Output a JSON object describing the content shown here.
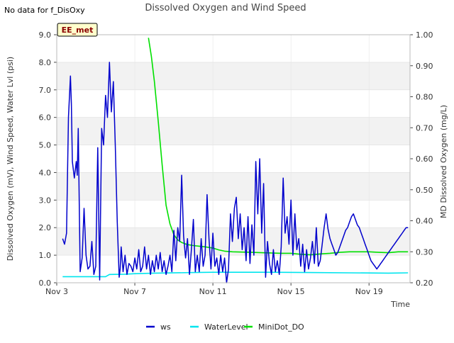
{
  "note": "No data for f_DisOxy",
  "chart_data": {
    "type": "line",
    "title": "Dissolved Oxygen and Wind Speed",
    "badge": "EE_met",
    "xlabel": "Time",
    "ylabel_left": "Dissolved Oxygen (mV), Wind Speed, Water Lvl (psi)",
    "ylabel_right": "MD Dissolved Oxygen (mg/L)",
    "x_ticks": [
      {
        "x": 3,
        "label": "Nov 3"
      },
      {
        "x": 7,
        "label": "Nov 7"
      },
      {
        "x": 11,
        "label": "Nov 11"
      },
      {
        "x": 15,
        "label": "Nov 15"
      },
      {
        "x": 19,
        "label": "Nov 19"
      }
    ],
    "xlim": [
      3,
      21.1
    ],
    "ylim_left": [
      0,
      9
    ],
    "ylim_right": [
      0.2,
      1.0
    ],
    "left_ticks": [
      "0.0",
      "1.0",
      "2.0",
      "3.0",
      "4.0",
      "5.0",
      "6.0",
      "7.0",
      "8.0",
      "9.0"
    ],
    "right_ticks": [
      "0.20",
      "0.30",
      "0.40",
      "0.50",
      "0.60",
      "0.70",
      "0.80",
      "0.90",
      "1.00"
    ],
    "left_tick_values": [
      0,
      1,
      2,
      3,
      4,
      5,
      6,
      7,
      8,
      9
    ],
    "right_tick_values": [
      0.2,
      0.3,
      0.4,
      0.5,
      0.6,
      0.7,
      0.8,
      0.9,
      1.0
    ],
    "grid_bands": true,
    "legend_position": "bottom",
    "series": [
      {
        "name": "ws",
        "color": "#0000cc",
        "axis": "left",
        "x": [
          3.3,
          3.4,
          3.5,
          3.6,
          3.7,
          3.75,
          3.8,
          3.9,
          4.0,
          4.05,
          4.1,
          4.2,
          4.3,
          4.4,
          4.5,
          4.6,
          4.7,
          4.8,
          4.9,
          5.0,
          5.1,
          5.2,
          5.3,
          5.4,
          5.5,
          5.6,
          5.7,
          5.8,
          5.9,
          6.0,
          6.1,
          6.2,
          6.25,
          6.3,
          6.4,
          6.5,
          6.6,
          6.7,
          6.8,
          6.9,
          7.0,
          7.1,
          7.2,
          7.3,
          7.4,
          7.5,
          7.6,
          7.7,
          7.8,
          7.9,
          8.0,
          8.1,
          8.2,
          8.3,
          8.4,
          8.5,
          8.6,
          8.7,
          8.8,
          8.9,
          9.0,
          9.1,
          9.2,
          9.3,
          9.4,
          9.5,
          9.6,
          9.7,
          9.8,
          9.9,
          10.0,
          10.1,
          10.2,
          10.3,
          10.4,
          10.5,
          10.6,
          10.7,
          10.8,
          10.9,
          11.0,
          11.1,
          11.2,
          11.3,
          11.4,
          11.5,
          11.6,
          11.7,
          11.8,
          11.9,
          12.0,
          12.1,
          12.2,
          12.3,
          12.4,
          12.5,
          12.6,
          12.7,
          12.8,
          12.9,
          13.0,
          13.1,
          13.2,
          13.3,
          13.4,
          13.5,
          13.6,
          13.7,
          13.8,
          13.9,
          14.0,
          14.1,
          14.2,
          14.3,
          14.4,
          14.5,
          14.6,
          14.7,
          14.8,
          14.9,
          15.0,
          15.1,
          15.2,
          15.3,
          15.4,
          15.5,
          15.6,
          15.7,
          15.8,
          15.9,
          16.0,
          16.1,
          16.2,
          16.3,
          16.4,
          16.5,
          16.6,
          16.7,
          16.8,
          16.9,
          17.0,
          17.1,
          17.2,
          17.3,
          17.4,
          17.5,
          17.6,
          17.7,
          17.8,
          17.9,
          18.0,
          18.1,
          18.2,
          18.3,
          18.4,
          18.5,
          18.6,
          18.7,
          18.8,
          18.9,
          19.0,
          19.1,
          19.2,
          19.3,
          19.4,
          19.5,
          19.6,
          19.7,
          19.8,
          19.9,
          20.0,
          20.1,
          20.2,
          20.3,
          20.4,
          20.5,
          20.6,
          20.7,
          20.8,
          20.9,
          21.0
        ],
        "values": [
          1.6,
          1.4,
          1.8,
          6.0,
          7.5,
          6.5,
          4.4,
          3.8,
          4.4,
          3.9,
          5.6,
          0.4,
          0.9,
          2.7,
          1.0,
          0.5,
          0.6,
          1.5,
          0.3,
          0.6,
          4.9,
          0.1,
          5.6,
          5.0,
          6.8,
          6.0,
          8.0,
          6.2,
          7.3,
          5.0,
          2.2,
          0.2,
          0.5,
          1.3,
          0.4,
          1.0,
          0.3,
          0.7,
          0.6,
          0.4,
          0.9,
          0.5,
          1.2,
          0.4,
          0.6,
          1.3,
          0.5,
          1.0,
          0.3,
          0.8,
          0.4,
          1.0,
          0.5,
          1.1,
          0.4,
          0.8,
          0.3,
          0.6,
          1.0,
          0.4,
          1.9,
          0.8,
          2.0,
          1.5,
          3.9,
          1.7,
          0.9,
          1.6,
          0.3,
          1.2,
          2.3,
          0.4,
          1.0,
          0.4,
          1.6,
          0.6,
          1.0,
          3.2,
          1.6,
          0.5,
          1.8,
          0.6,
          0.9,
          0.3,
          1.0,
          0.4,
          0.9,
          0.0,
          0.5,
          2.5,
          1.5,
          2.7,
          3.1,
          1.6,
          2.5,
          1.2,
          2.0,
          0.8,
          2.4,
          0.7,
          2.1,
          1.0,
          4.4,
          2.5,
          4.5,
          1.8,
          3.6,
          0.2,
          1.5,
          0.7,
          0.3,
          1.2,
          0.4,
          0.8,
          0.3,
          1.3,
          3.8,
          1.8,
          2.4,
          1.4,
          3.0,
          1.0,
          2.5,
          1.2,
          1.6,
          0.6,
          1.4,
          0.4,
          1.2,
          0.5,
          0.9,
          1.5,
          0.7,
          2.0,
          0.6,
          0.8,
          1.4,
          2.0,
          2.5,
          1.95,
          1.6,
          1.4,
          1.2,
          1.0,
          1.1,
          1.3,
          1.5,
          1.7,
          1.9,
          2.0,
          2.2,
          2.4,
          2.5,
          2.3,
          2.1,
          2.0,
          1.8,
          1.6,
          1.4,
          1.2,
          1.0,
          0.8,
          0.7,
          0.6,
          0.5,
          0.6,
          0.7,
          0.8,
          0.9,
          1.0,
          1.1,
          1.2,
          1.3,
          1.4,
          1.5,
          1.6,
          1.7,
          1.8,
          1.9,
          2.0,
          2.0
        ]
      },
      {
        "name": "WaterLevel",
        "color": "#00e5ee",
        "axis": "left",
        "x": [
          3.3,
          5.5,
          5.7,
          6.5,
          7.0,
          8.0,
          10.0,
          11.0,
          14.0,
          16.0,
          18.0,
          20.0,
          21.0
        ],
        "values": [
          0.22,
          0.22,
          0.3,
          0.31,
          0.33,
          0.35,
          0.37,
          0.38,
          0.38,
          0.37,
          0.36,
          0.35,
          0.36
        ]
      },
      {
        "name": "MiniDot_DO",
        "color": "#00e000",
        "axis": "right",
        "x": [
          7.7,
          7.85,
          8.0,
          8.2,
          8.4,
          8.6,
          8.8,
          9.0,
          9.2,
          9.4,
          9.6,
          9.8,
          10.0,
          10.3,
          10.6,
          11.0,
          11.3,
          11.6,
          12.0,
          12.5,
          13.0,
          13.5,
          14.0,
          14.5,
          15.0,
          15.5,
          16.0,
          16.5,
          17.0,
          17.5,
          18.0,
          18.5,
          19.0,
          19.5,
          20.0,
          20.5,
          21.0
        ],
        "values": [
          0.99,
          0.93,
          0.85,
          0.72,
          0.58,
          0.45,
          0.39,
          0.355,
          0.338,
          0.33,
          0.325,
          0.322,
          0.32,
          0.318,
          0.316,
          0.312,
          0.306,
          0.302,
          0.3,
          0.299,
          0.298,
          0.297,
          0.296,
          0.295,
          0.295,
          0.292,
          0.29,
          0.293,
          0.295,
          0.298,
          0.3,
          0.3,
          0.3,
          0.298,
          0.297,
          0.3,
          0.3
        ]
      }
    ]
  }
}
